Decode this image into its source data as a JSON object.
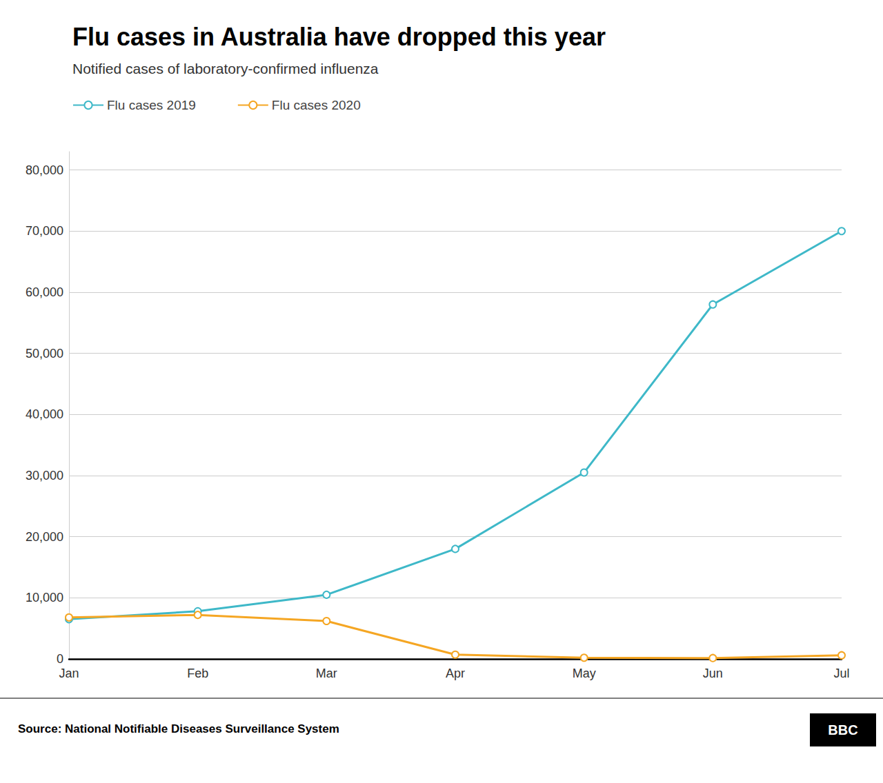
{
  "chart_data": {
    "type": "line",
    "title": "Flu cases in Australia have dropped this year",
    "subtitle": "Notified cases of laboratory-confirmed influenza",
    "source": "Source: National Notifiable Diseases Surveillance System",
    "annotations": [
      "BBC"
    ],
    "categories": [
      "Jan",
      "Feb",
      "Mar",
      "Apr",
      "May",
      "Jun",
      "Jul"
    ],
    "series": [
      {
        "name": "Flu cases 2019",
        "color": "#3eb8c8",
        "values": [
          6500,
          7800,
          10500,
          18000,
          30500,
          58000,
          70000
        ]
      },
      {
        "name": "Flu cases 2020",
        "color": "#f5a623",
        "values": [
          6800,
          7200,
          6200,
          700,
          200,
          150,
          600
        ]
      }
    ],
    "ylim": [
      0,
      83000
    ],
    "yticks": [
      0,
      {
        "value": 10000,
        "label": "10,000"
      },
      {
        "value": 20000,
        "label": "20,000"
      },
      {
        "value": 30000,
        "label": "30,000"
      },
      {
        "value": 40000,
        "label": "40,000"
      },
      {
        "value": 50000,
        "label": "50,000"
      },
      {
        "value": 60000,
        "label": "60,000"
      },
      {
        "value": 70000,
        "label": "70,000"
      },
      {
        "value": 80000,
        "label": "80,000"
      }
    ],
    "grid": true,
    "legend": "upper left",
    "marker": "circle"
  }
}
